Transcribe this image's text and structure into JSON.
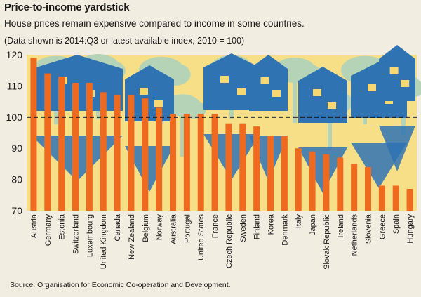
{
  "header": {
    "title": "Price-to-income yardstick",
    "subtitle": "House prices remain expensive compared to income in some countries.",
    "note": "(Data shown is 2014:Q3 or latest available index, 2010 = 100)"
  },
  "footer": {
    "source": "Source: Organisation for Economic Co-operation and Development."
  },
  "colors": {
    "bar": "#ef6a1f",
    "plot_bg": "#f6df86",
    "tree": "#b5d3b7",
    "house_blue": "#2f73b3",
    "window": "#f7d772"
  },
  "chart_data": {
    "type": "bar",
    "title": "Price-to-income yardstick",
    "xlabel": "",
    "ylabel": "",
    "ylim": [
      70,
      120
    ],
    "yticks": [
      70,
      80,
      90,
      100,
      110,
      120
    ],
    "reference_line": 100,
    "categories": [
      "Austria",
      "Germany",
      "Estonia",
      "Switzerland",
      "Luxembourg",
      "United Kingdom",
      "Canada",
      "New Zealand",
      "Belgium",
      "Norway",
      "Australia",
      "Portugal",
      "United States",
      "France",
      "Czech Republic",
      "Sweden",
      "Finland",
      "Korea",
      "Denmark",
      "Italy",
      "Japan",
      "Slovak Republic",
      "Ireland",
      "Netherlands",
      "Slovenia",
      "Greece",
      "Spain",
      "Hungary"
    ],
    "values": [
      119,
      114,
      113,
      111,
      111,
      108,
      107,
      107,
      106,
      103,
      101,
      101,
      101,
      101,
      98,
      98,
      97,
      94,
      94,
      90,
      89,
      88,
      87,
      85,
      84,
      78,
      78,
      77
    ]
  }
}
